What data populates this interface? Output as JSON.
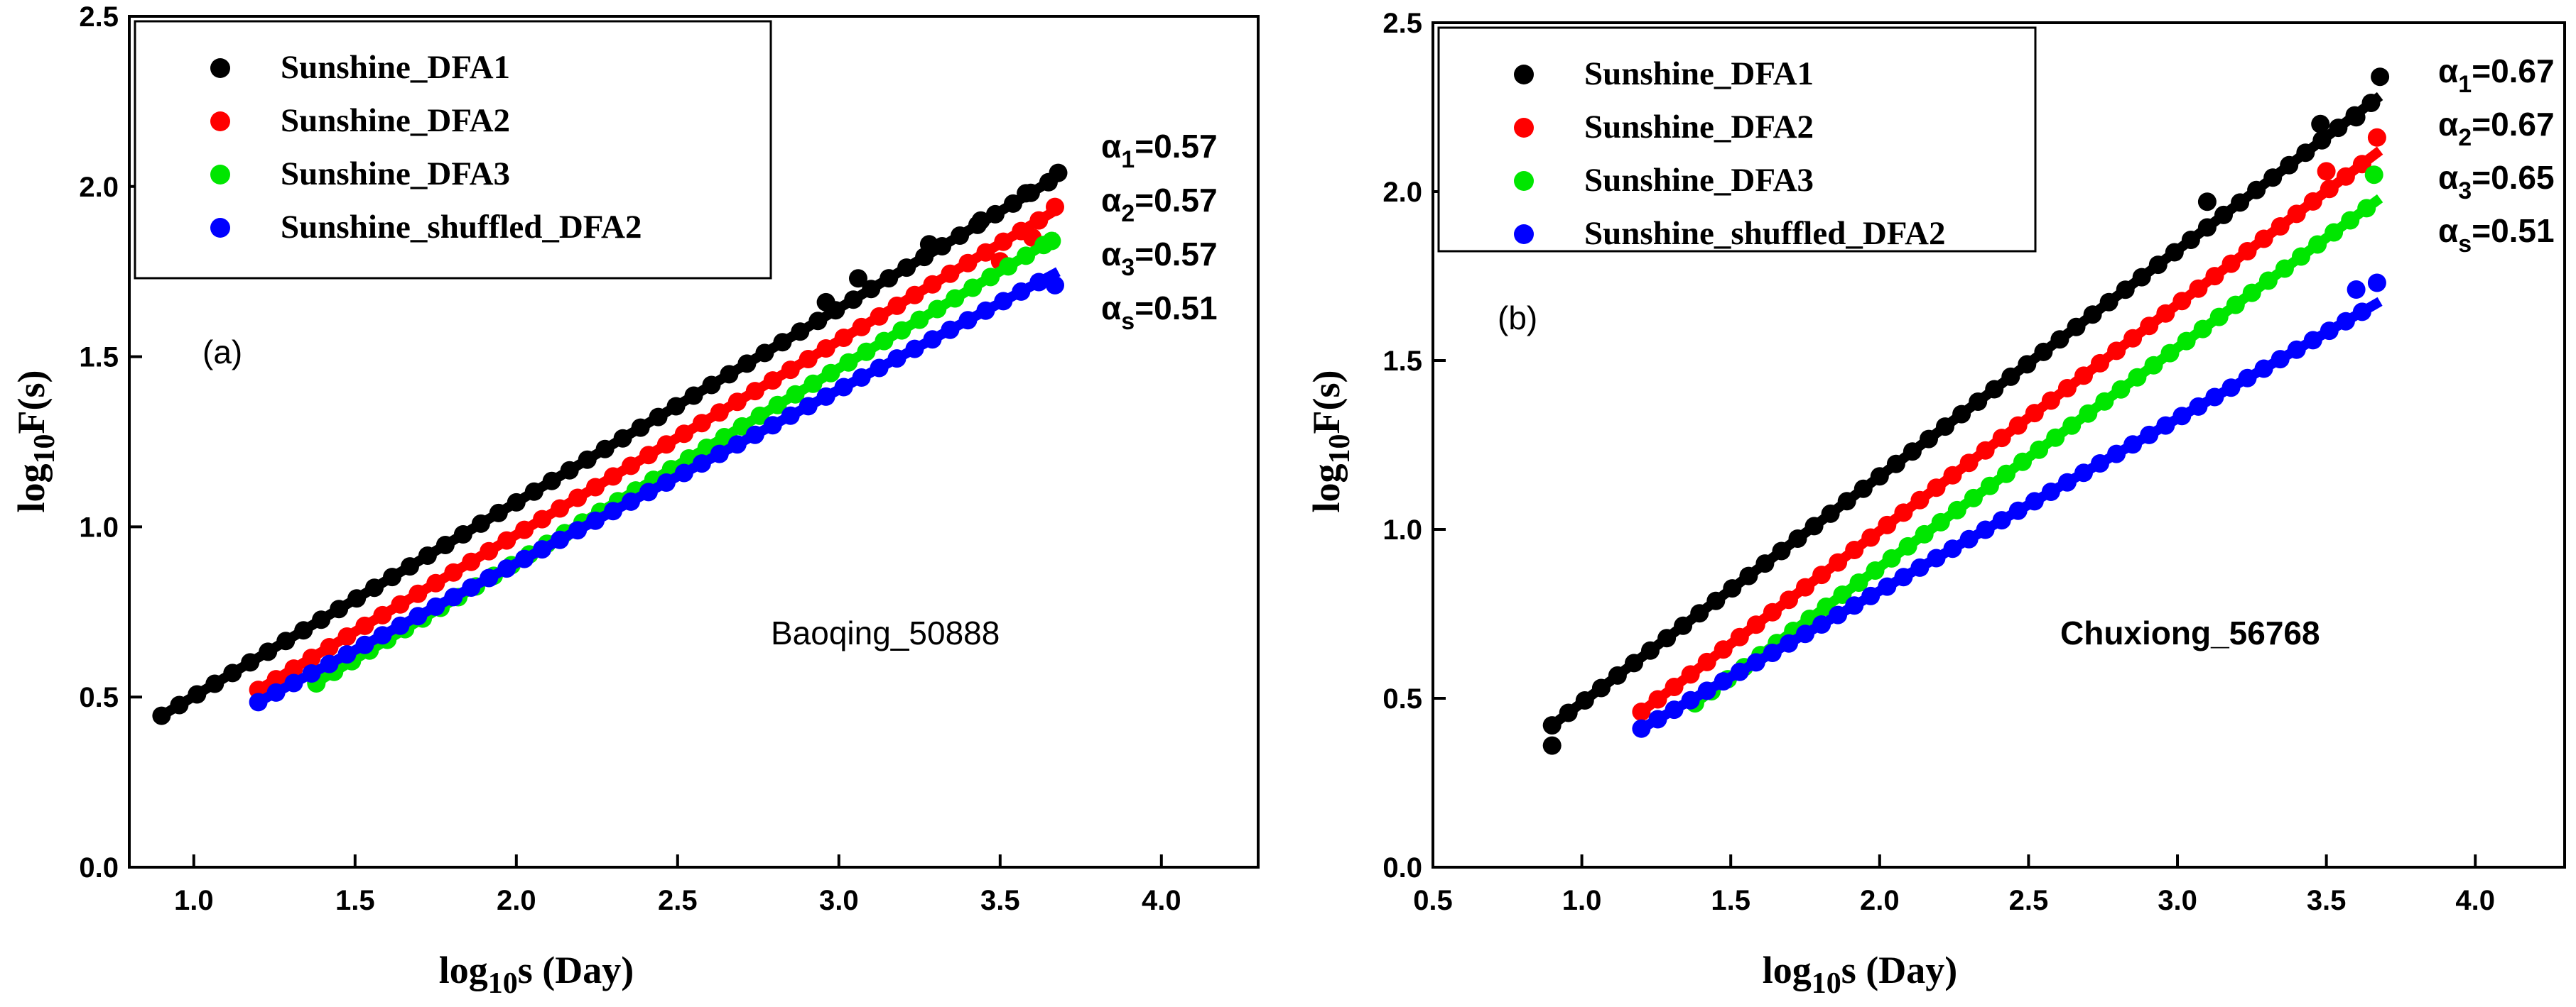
{
  "chart_data": [
    {
      "type": "scatter",
      "panel_label": "(a)",
      "station": "Baoqing_50888",
      "xlabel": {
        "main": "log",
        "sub": "10",
        "rest": "s (Day)"
      },
      "ylabel": {
        "main": "log",
        "sub": "10",
        "rest": "F(s)"
      },
      "xlim": [
        0.8,
        4.3
      ],
      "ylim": [
        0.0,
        2.5
      ],
      "xticks": [
        "1.0",
        "1.5",
        "2.0",
        "2.5",
        "3.0",
        "3.5",
        "4.0"
      ],
      "xtick_values": [
        1.0,
        1.5,
        2.0,
        2.5,
        3.0,
        3.5,
        4.0
      ],
      "yticks": [
        "0.0",
        "0.5",
        "1.0",
        "1.5",
        "2.0",
        "2.5"
      ],
      "ytick_values": [
        0.0,
        0.5,
        1.0,
        1.5,
        2.0,
        2.5
      ],
      "legend_position": "top-left",
      "series": [
        {
          "name": "Sunshine_DFA1",
          "color": "#000000",
          "x_start": 0.9,
          "x_end": 3.68,
          "step": 0.055,
          "intercept": -0.068,
          "slope": 0.57,
          "fit": [
            0.9,
            3.68
          ],
          "scatter_points": [
            [
              2.96,
              1.66
            ],
            [
              3.06,
              1.73
            ],
            [
              3.28,
              1.83
            ],
            [
              3.44,
              1.9
            ],
            [
              3.58,
              1.98
            ],
            [
              3.68,
              2.04
            ]
          ]
        },
        {
          "name": "Sunshine_DFA2",
          "color": "#ff0000",
          "x_start": 1.2,
          "x_end": 3.67,
          "step": 0.055,
          "intercept": -0.163,
          "slope": 0.57,
          "fit": [
            1.2,
            3.68
          ],
          "scatter_points": [
            [
              3.5,
              1.78
            ],
            [
              3.6,
              1.85
            ],
            [
              3.67,
              1.94
            ]
          ]
        },
        {
          "name": "Sunshine_DFA3",
          "color": "#00e600",
          "x_start": 1.38,
          "x_end": 3.66,
          "step": 0.055,
          "intercept": -0.244,
          "slope": 0.57,
          "fit": [
            1.38,
            3.68
          ],
          "scatter_points": [
            [
              1.38,
              0.54
            ],
            [
              3.66,
              1.84
            ]
          ]
        },
        {
          "name": "Sunshine_shuffled_DFA2",
          "color": "#0000ff",
          "x_start": 1.2,
          "x_end": 3.67,
          "step": 0.055,
          "intercept": -0.127,
          "slope": 0.51,
          "fit": [
            1.2,
            3.68
          ],
          "scatter_points": [
            [
              3.67,
              1.71
            ]
          ]
        }
      ],
      "annotations": [
        {
          "sym": "α",
          "sub": "1",
          "text": "=0.57"
        },
        {
          "sym": "α",
          "sub": "2",
          "text": "=0.57"
        },
        {
          "sym": "α",
          "sub": "3",
          "text": "=0.57"
        },
        {
          "sym": "α",
          "sub": "s",
          "text": "=0.51"
        }
      ]
    },
    {
      "type": "scatter",
      "panel_label": "(b)",
      "station": "Chuxiong_56768",
      "xlabel": {
        "main": "log",
        "sub": "10",
        "rest": "s (Day)"
      },
      "ylabel": {
        "main": "log",
        "sub": "10",
        "rest": "F(s)"
      },
      "xlim": [
        0.5,
        4.3
      ],
      "ylim": [
        0.0,
        2.5
      ],
      "xticks": [
        "0.5",
        "1.0",
        "1.5",
        "2.0",
        "2.5",
        "3.0",
        "3.5",
        "4.0"
      ],
      "xtick_values": [
        0.5,
        1.0,
        1.5,
        2.0,
        2.5,
        3.0,
        3.5,
        4.0
      ],
      "yticks": [
        "0.0",
        "0.5",
        "1.0",
        "1.5",
        "2.0",
        "2.5"
      ],
      "ytick_values": [
        0.0,
        0.5,
        1.0,
        1.5,
        2.0,
        2.5
      ],
      "legend_position": "top-left",
      "series": [
        {
          "name": "Sunshine_DFA1",
          "color": "#000000",
          "x_start": 0.9,
          "x_end": 3.68,
          "step": 0.055,
          "intercept": -0.183,
          "slope": 0.67,
          "fit": [
            0.9,
            3.68
          ],
          "scatter_points": [
            [
              0.9,
              0.36
            ],
            [
              3.1,
              1.97
            ],
            [
              3.48,
              2.2
            ],
            [
              3.6,
              2.22
            ],
            [
              3.68,
              2.34
            ]
          ]
        },
        {
          "name": "Sunshine_DFA2",
          "color": "#ff0000",
          "x_start": 1.2,
          "x_end": 3.67,
          "step": 0.055,
          "intercept": -0.344,
          "slope": 0.67,
          "fit": [
            1.2,
            3.68
          ],
          "scatter_points": [
            [
              3.5,
              2.06
            ],
            [
              3.67,
              2.16
            ]
          ]
        },
        {
          "name": "Sunshine_DFA3",
          "color": "#00e600",
          "x_start": 1.38,
          "x_end": 3.66,
          "step": 0.055,
          "intercept": -0.412,
          "slope": 0.65,
          "fit": [
            1.38,
            3.68
          ],
          "scatter_points": [
            [
              1.38,
              0.49
            ],
            [
              3.66,
              2.05
            ]
          ]
        },
        {
          "name": "Sunshine_shuffled_DFA2",
          "color": "#0000ff",
          "x_start": 1.2,
          "x_end": 3.67,
          "step": 0.055,
          "intercept": -0.202,
          "slope": 0.51,
          "fit": [
            1.2,
            3.68
          ],
          "scatter_points": [
            [
              3.6,
              1.71
            ],
            [
              3.67,
              1.73
            ]
          ]
        }
      ],
      "annotations": [
        {
          "sym": "α",
          "sub": "1",
          "text": "=0.67"
        },
        {
          "sym": "α",
          "sub": "2",
          "text": "=0.67"
        },
        {
          "sym": "α",
          "sub": "3",
          "text": "=0.65"
        },
        {
          "sym": "α",
          "sub": "s",
          "text": "=0.51"
        }
      ]
    }
  ]
}
